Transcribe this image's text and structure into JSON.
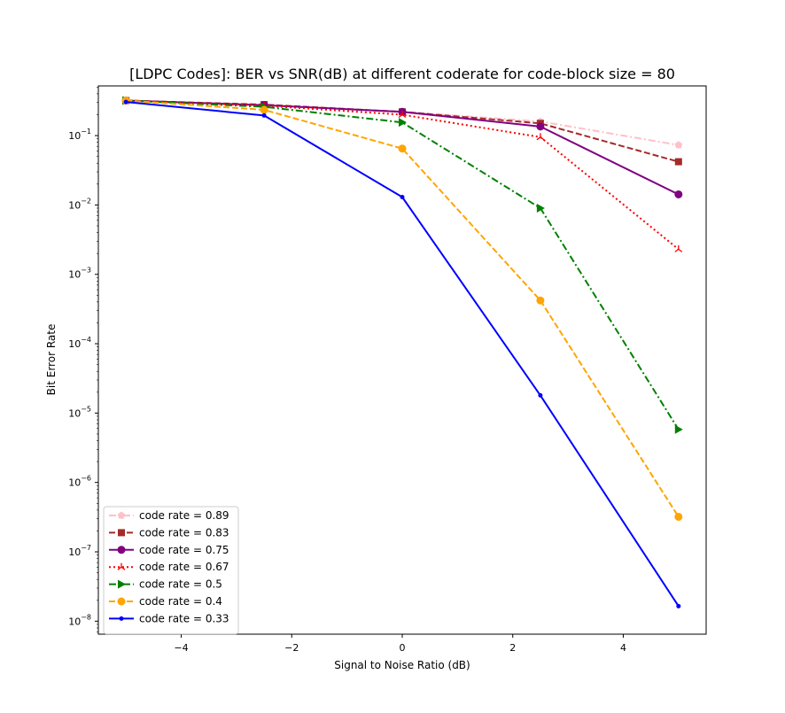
{
  "chart_data": {
    "type": "line",
    "title": "[LDPC Codes]: BER vs SNR(dB) at different coderate for code-block size = 80",
    "xlabel": "Signal to Noise Ratio (dB)",
    "ylabel": "Bit Error Rate",
    "x": [
      -5,
      -2.5,
      0,
      2.5,
      5
    ],
    "xlim": [
      -5.5,
      5.5
    ],
    "ylim": [
      6.5e-09,
      0.52
    ],
    "yscale": "log",
    "xticks": [
      -4,
      -2,
      0,
      2,
      4
    ],
    "xtick_labels": [
      "−4",
      "−2",
      "0",
      "2",
      "4"
    ],
    "yticks": [
      1e-08,
      1e-07,
      1e-06,
      1e-05,
      0.0001,
      0.001,
      0.01,
      0.1
    ],
    "ytick_bases": [
      "10",
      "10",
      "10",
      "10",
      "10",
      "10",
      "10",
      "10"
    ],
    "ytick_exponents": [
      "−8",
      "−7",
      "−6",
      "−5",
      "−4",
      "−3",
      "−2",
      "−1"
    ],
    "grid": false,
    "legend_position": "lower-left",
    "series": [
      {
        "name": "code rate = 0.89",
        "color": "#ffc0cb",
        "linestyle": "dashdot",
        "marker": "pentagon",
        "values": [
          0.32,
          0.275,
          0.22,
          0.16,
          0.073
        ]
      },
      {
        "name": "code rate = 0.83",
        "color": "#a52a2a",
        "linestyle": "dashed",
        "marker": "square",
        "values": [
          0.32,
          0.28,
          0.22,
          0.15,
          0.042
        ]
      },
      {
        "name": "code rate = 0.75",
        "color": "#800080",
        "linestyle": "solid",
        "marker": "circle",
        "values": [
          0.32,
          0.275,
          0.22,
          0.135,
          0.0142
        ]
      },
      {
        "name": "code rate = 0.67",
        "color": "#ff0000",
        "linestyle": "dotted",
        "marker": "tri-up",
        "values": [
          0.32,
          0.27,
          0.2,
          0.095,
          0.0023
        ]
      },
      {
        "name": "code rate = 0.5",
        "color": "#008000",
        "linestyle": "dashdot",
        "marker": "triangle-right",
        "values": [
          0.32,
          0.26,
          0.155,
          0.009,
          5.8e-06
        ]
      },
      {
        "name": "code rate = 0.4",
        "color": "#ffa500",
        "linestyle": "dashed",
        "marker": "circle",
        "values": [
          0.32,
          0.235,
          0.065,
          0.00042,
          3.2e-07
        ]
      },
      {
        "name": "code rate = 0.33",
        "color": "#0000ff",
        "linestyle": "solid",
        "marker": "point",
        "values": [
          0.305,
          0.195,
          0.013,
          1.8e-05,
          1.65e-08
        ]
      }
    ]
  }
}
